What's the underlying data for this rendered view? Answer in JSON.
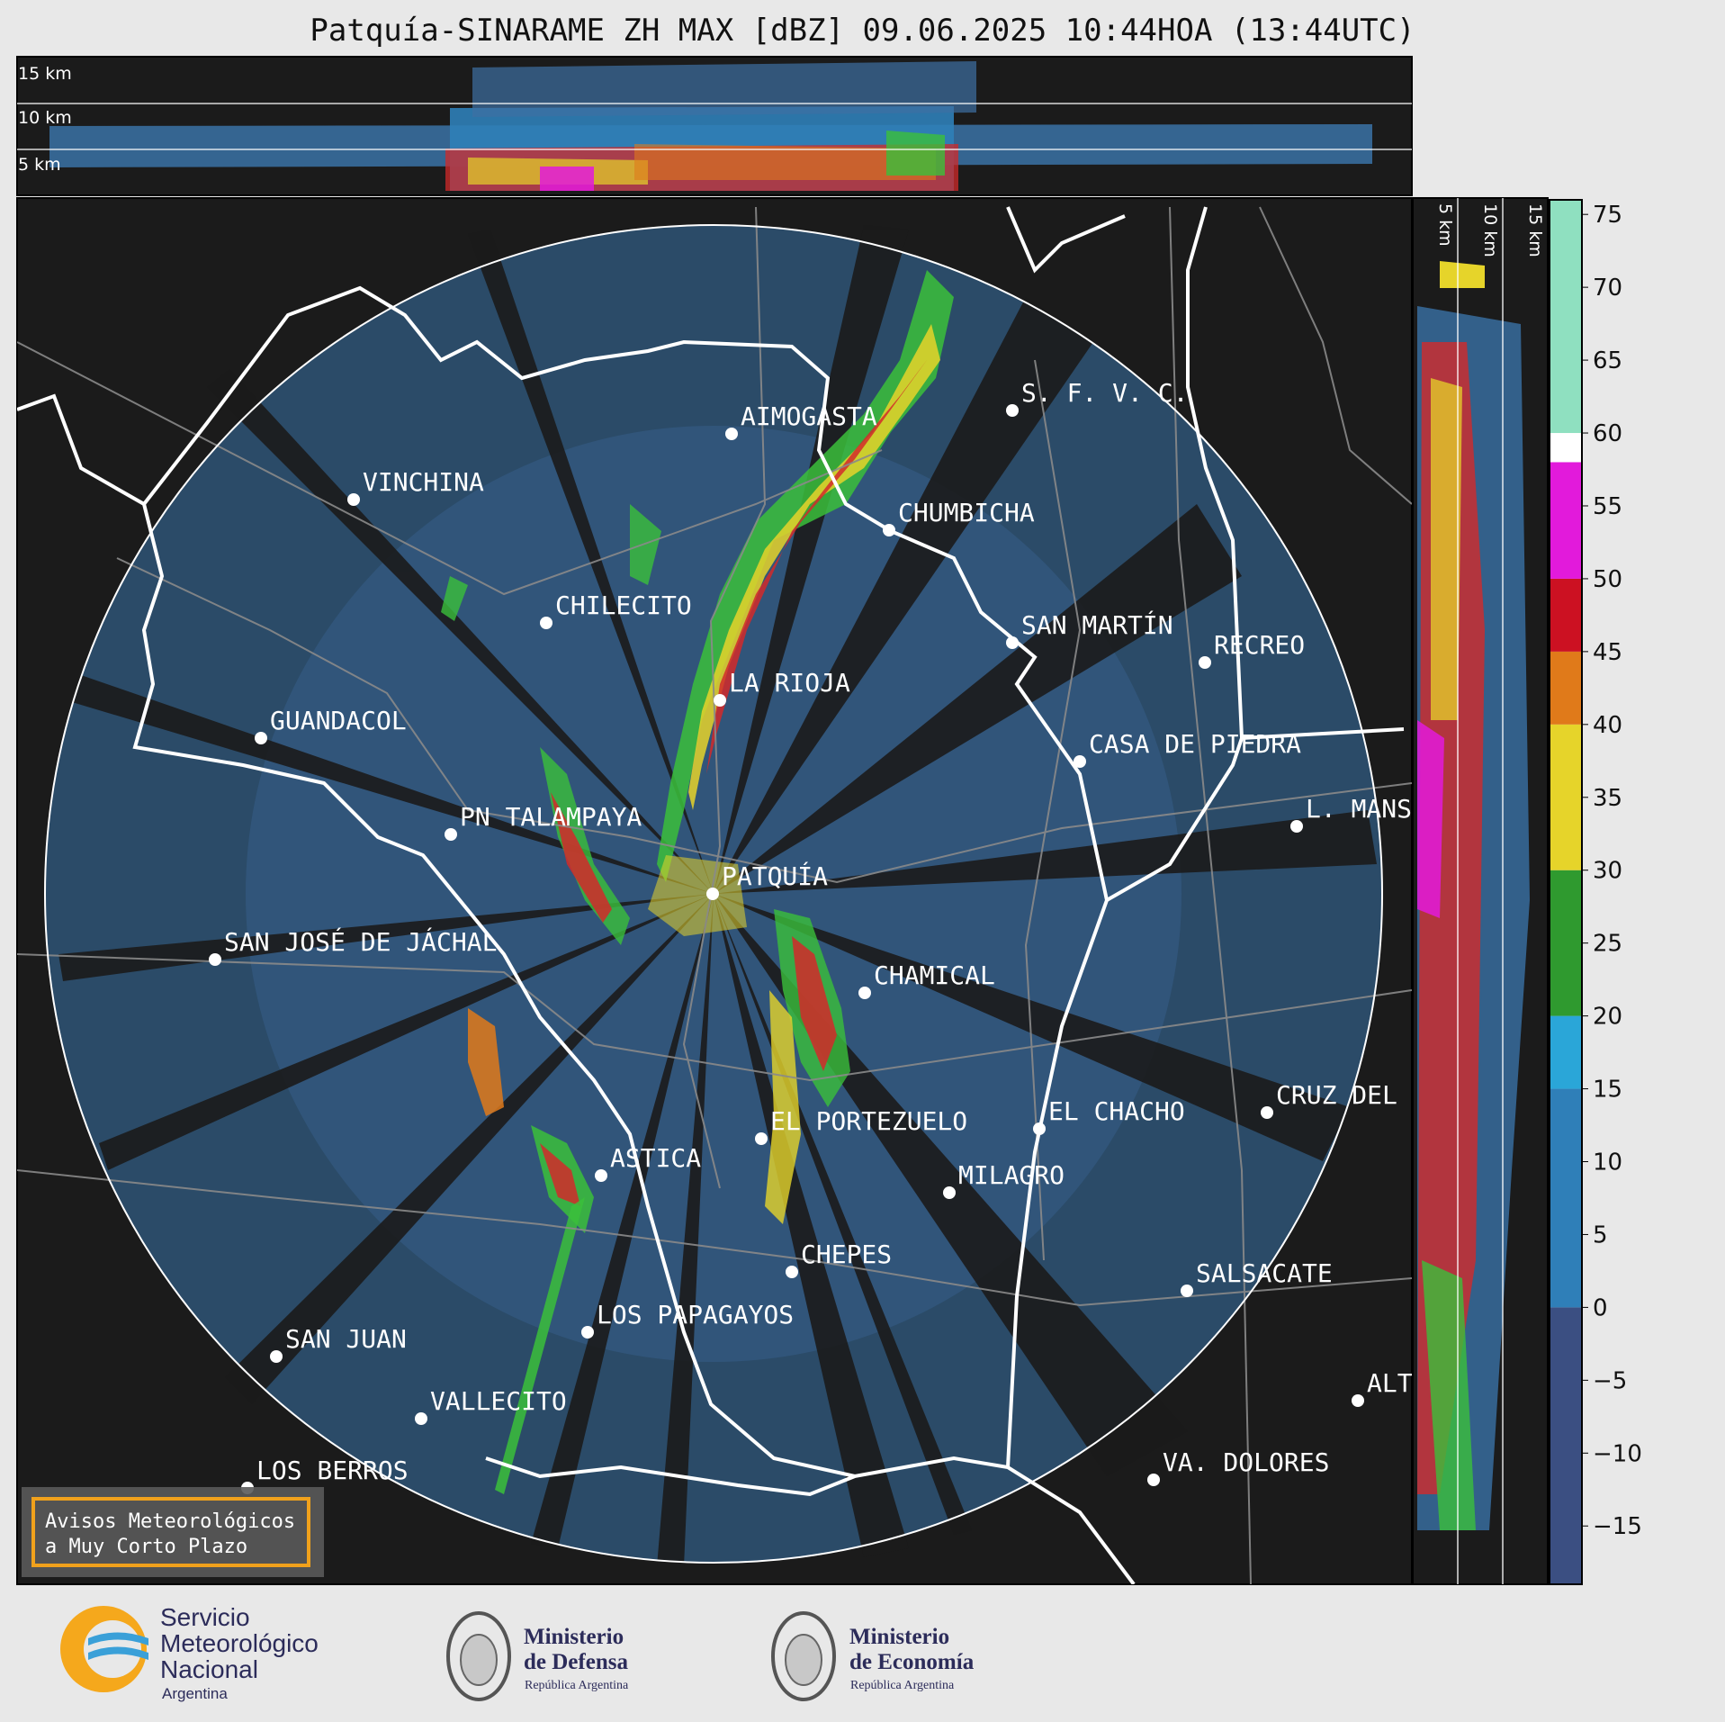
{
  "title": "Patquía-SINARAME ZH MAX [dBZ] 09.06.2025 10:44HOA (13:44UTC)",
  "top_panel": {
    "levels": [
      "15 km",
      "10 km",
      "5 km"
    ]
  },
  "side_panel": {
    "levels": [
      "5 km",
      "10 km",
      "15 km"
    ]
  },
  "colorbar": {
    "ticks": [
      "75",
      "70",
      "65",
      "60",
      "55",
      "50",
      "45",
      "40",
      "35",
      "30",
      "25",
      "20",
      "15",
      "10",
      "5",
      "0",
      "−5",
      "−10",
      "−15"
    ],
    "colors": {
      "below_0": "#3b4f82",
      "b0_15": "#2f7fb8",
      "b15_20": "#2aa6d8",
      "b20_30": "#2f9a2f",
      "b30_40": "#e6d42a",
      "b40_45": "#e07a1a",
      "b45_50": "#cc1122",
      "b50_58": "#e21adb",
      "b58_60": "#ffffff",
      "b60_76": "#8fe0c0"
    }
  },
  "cities": [
    {
      "name": "AIMOGASTA"
    },
    {
      "name": "S. F. V. C."
    },
    {
      "name": "VINCHINA"
    },
    {
      "name": "CHUMBICHA"
    },
    {
      "name": "CHILECITO"
    },
    {
      "name": "SAN MARTÍN"
    },
    {
      "name": "RECREO"
    },
    {
      "name": "LA RIOJA"
    },
    {
      "name": "GUANDACOL"
    },
    {
      "name": "CASA DE PIEDRA"
    },
    {
      "name": "L. MANS"
    },
    {
      "name": "PN TALAMPAYA"
    },
    {
      "name": "PATQUÍA"
    },
    {
      "name": "SAN JOSÉ DE JÁCHAL"
    },
    {
      "name": "CHAMICAL"
    },
    {
      "name": "CRUZ DEL"
    },
    {
      "name": "EL CHACHO"
    },
    {
      "name": "EL PORTEZUELO"
    },
    {
      "name": "ASTICA"
    },
    {
      "name": "MILAGRO"
    },
    {
      "name": "CHEPES"
    },
    {
      "name": "SALSACATE"
    },
    {
      "name": "LOS PAPAGAYOS"
    },
    {
      "name": "SAN JUAN"
    },
    {
      "name": "ALT"
    },
    {
      "name": "VALLECITO"
    },
    {
      "name": "LOS BERROS"
    },
    {
      "name": "VA. DOLORES"
    }
  ],
  "badge": {
    "line1": "Avisos Meteorológicos",
    "line2": "a Muy Corto Plazo"
  },
  "footer": {
    "smn": {
      "line1": "Servicio",
      "line2": "Meteorológico",
      "line3": "Nacional",
      "line4": "Argentina"
    },
    "defensa": {
      "line1": "Ministerio",
      "line2": "de Defensa",
      "line3": "República Argentina"
    },
    "economia": {
      "line1": "Ministerio",
      "line2": "de Economía",
      "line3": "República Argentina"
    }
  }
}
